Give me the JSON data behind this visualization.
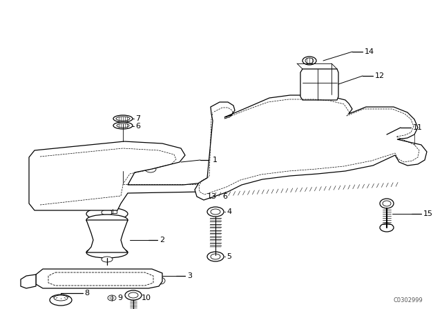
{
  "bg_color": "#ffffff",
  "line_color": "#000000",
  "part_number_text": "C0302999",
  "figsize": [
    6.4,
    4.48
  ],
  "dpi": 100
}
